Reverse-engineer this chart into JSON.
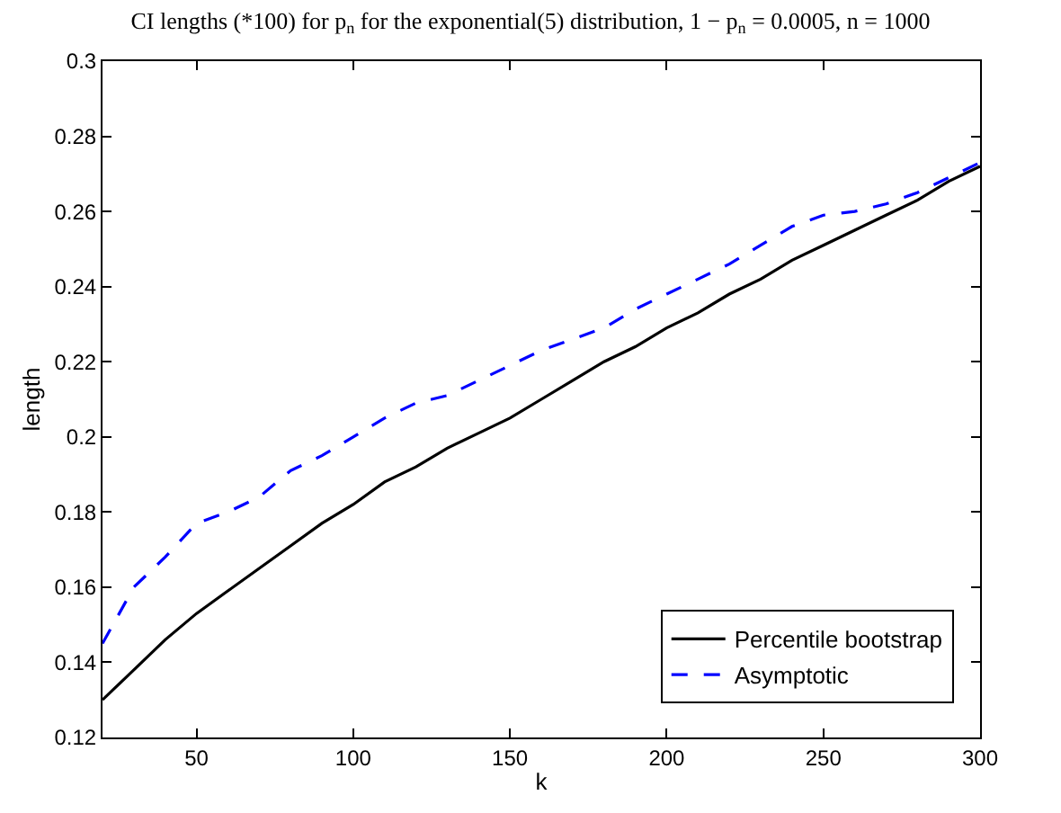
{
  "chart_data": {
    "type": "line",
    "title": "CI lengths (*100) for p$_{n}$ for the exponential(5) distribution, 1 − p$_{n}$ = 0.0005, n = 1000",
    "xlabel": "k",
    "ylabel": "length",
    "x": [
      20,
      30,
      40,
      50,
      60,
      70,
      80,
      90,
      100,
      110,
      120,
      130,
      140,
      150,
      160,
      170,
      180,
      190,
      200,
      210,
      220,
      230,
      240,
      250,
      260,
      270,
      280,
      290,
      300
    ],
    "series": [
      {
        "name": "Percentile bootstrap",
        "color": "#000000",
        "line_style": "solid",
        "values": [
          0.13,
          0.138,
          0.146,
          0.153,
          0.159,
          0.165,
          0.171,
          0.177,
          0.182,
          0.188,
          0.192,
          0.197,
          0.201,
          0.205,
          0.21,
          0.215,
          0.22,
          0.224,
          0.229,
          0.233,
          0.238,
          0.242,
          0.247,
          0.251,
          0.255,
          0.259,
          0.263,
          0.268,
          0.272
        ]
      },
      {
        "name": "Asymptotic",
        "color": "#0000ff",
        "line_style": "dashed",
        "values": [
          0.145,
          0.16,
          0.168,
          0.177,
          0.18,
          0.184,
          0.191,
          0.195,
          0.2,
          0.205,
          0.209,
          0.211,
          0.215,
          0.219,
          0.223,
          0.226,
          0.229,
          0.234,
          0.238,
          0.242,
          0.246,
          0.251,
          0.256,
          0.259,
          0.26,
          0.262,
          0.265,
          0.269,
          0.273
        ]
      }
    ],
    "xlim": [
      20,
      300
    ],
    "xticks": [
      50,
      100,
      150,
      200,
      250,
      300
    ],
    "ylim": [
      0.12,
      0.3
    ],
    "yticks": [
      0.12,
      0.14,
      0.16,
      0.18,
      0.2,
      0.22,
      0.24,
      0.26,
      0.28,
      0.3
    ],
    "legend": "bottom right",
    "marker": "none"
  }
}
